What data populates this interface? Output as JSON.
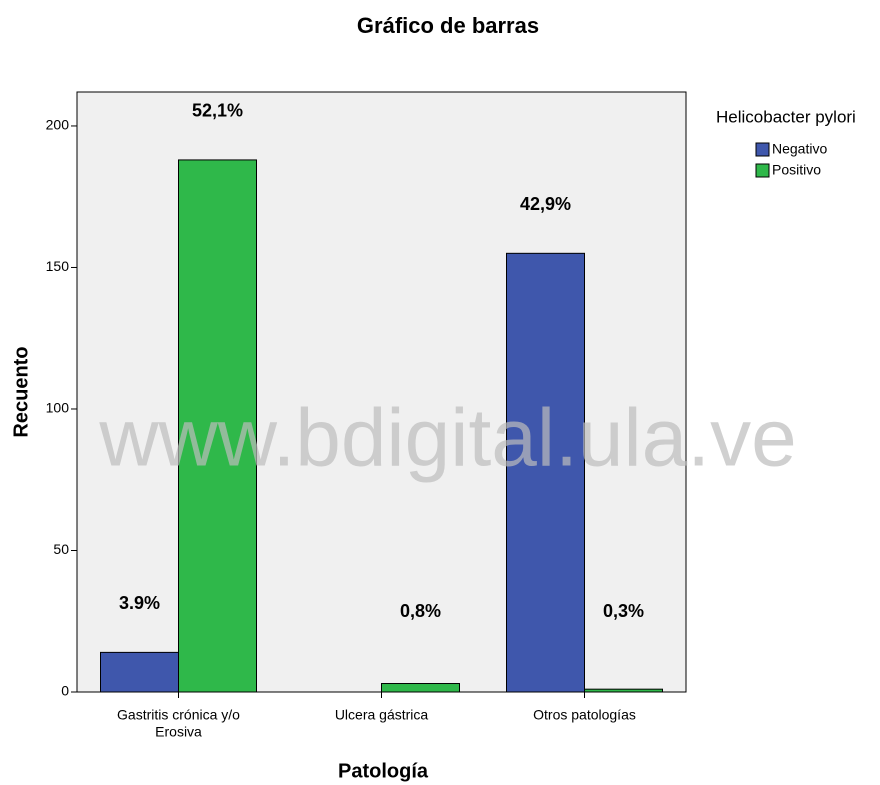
{
  "chart_data": {
    "type": "bar",
    "title": "Gráfico de barras",
    "x_label": "Patología",
    "y_label": "Recuento",
    "categories": [
      [
        "Gastritis crónica y/o",
        "Erosiva"
      ],
      "Ulcera gástrica",
      "Otros patologías"
    ],
    "legend_title": "Helicobacter pylori",
    "series": [
      {
        "name": "Negativo",
        "color": "#3f57ac",
        "values": [
          14,
          0,
          155
        ],
        "labels": [
          "3.9%",
          null,
          "42,9%"
        ]
      },
      {
        "name": "Positivo",
        "color": "#2fb84a",
        "values": [
          188,
          3,
          1
        ],
        "labels": [
          "52,1%",
          "0,8%",
          "0,3%"
        ]
      }
    ],
    "ylim": [
      0,
      212
    ],
    "yticks": [
      0,
      50,
      100,
      150,
      200
    ],
    "legend": "right",
    "watermark": "www.bdigital.ula.ve"
  }
}
